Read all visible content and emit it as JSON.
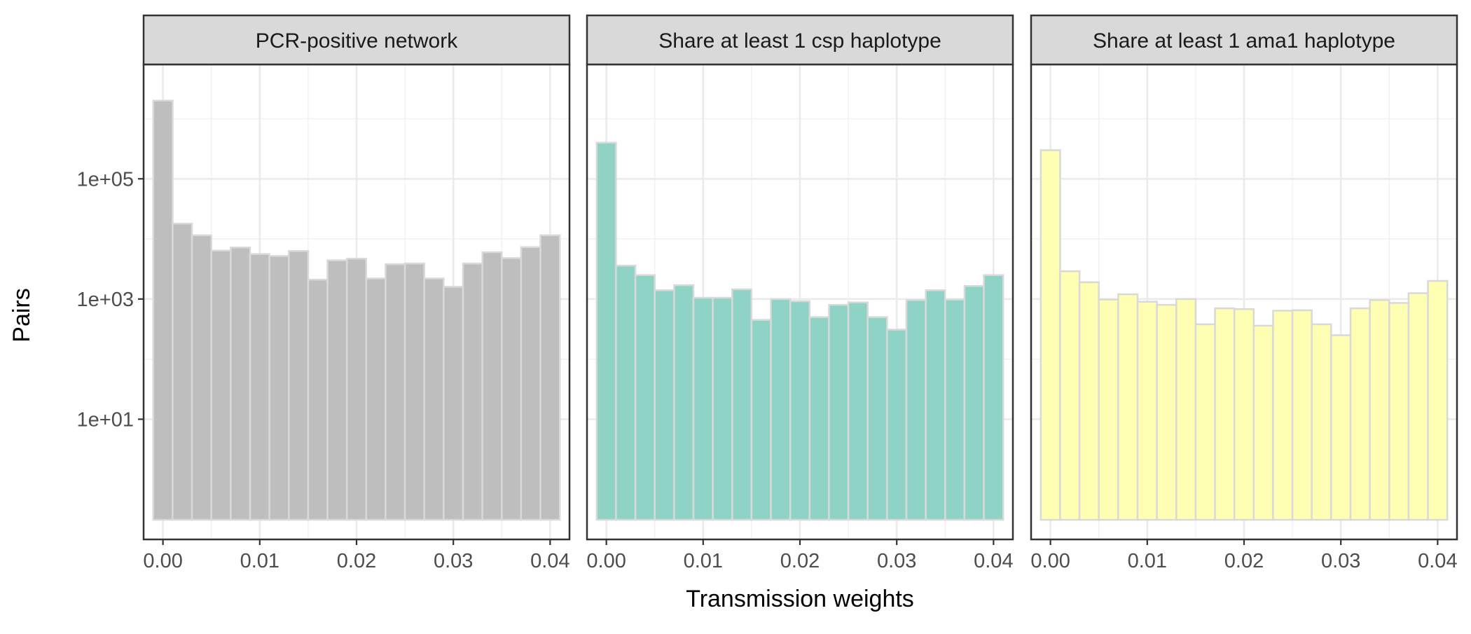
{
  "chart_data": {
    "type": "bar",
    "ylabel": "Pairs",
    "xlabel": "Transmission weights",
    "yscale": "log10",
    "ylim": [
      0.1,
      8000000
    ],
    "y_ticks": [
      10,
      1000,
      100000
    ],
    "y_tick_labels": [
      "1e+01",
      "1e+03",
      "1e+05"
    ],
    "xlim": [
      -0.002,
      0.042
    ],
    "x_ticks": [
      0.0,
      0.01,
      0.02,
      0.03,
      0.04
    ],
    "x_tick_labels": [
      "0.00",
      "0.01",
      "0.02",
      "0.03",
      "0.04"
    ],
    "bin_width": 0.002,
    "bin_centers": [
      0.0,
      0.002,
      0.004,
      0.006,
      0.008,
      0.01,
      0.012,
      0.014,
      0.016,
      0.018,
      0.02,
      0.022,
      0.024,
      0.026,
      0.028,
      0.03,
      0.032,
      0.034,
      0.036,
      0.038,
      0.04
    ],
    "grid": true,
    "panels": [
      {
        "title": "PCR-positive network",
        "fill": "#bebebe",
        "values": [
          2000000,
          18000,
          11500,
          6400,
          7200,
          5600,
          5200,
          6300,
          2100,
          4400,
          4700,
          2200,
          3800,
          3900,
          2200,
          1600,
          3900,
          6000,
          4800,
          7300,
          11500
        ]
      },
      {
        "title": "Share at least 1 csp haplotype",
        "fill": "#8fd3c7",
        "values": [
          400000,
          3600,
          2500,
          1400,
          1700,
          1050,
          1050,
          1450,
          450,
          1000,
          920,
          500,
          800,
          880,
          500,
          310,
          960,
          1400,
          980,
          1650,
          2500
        ]
      },
      {
        "title": "Share at least 1 ama1 haplotype",
        "fill": "#ffffb3",
        "values": [
          300000,
          2900,
          1900,
          980,
          1200,
          900,
          800,
          1000,
          380,
          700,
          680,
          360,
          640,
          650,
          380,
          250,
          700,
          960,
          860,
          1250,
          2000
        ]
      }
    ]
  }
}
